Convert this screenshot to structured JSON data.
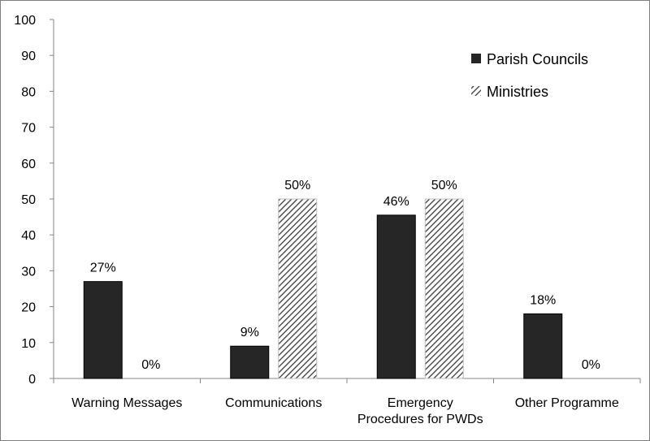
{
  "chart_data": {
    "type": "bar",
    "title": "",
    "xlabel": "",
    "ylabel": "",
    "categories": [
      [
        "Warning Messages"
      ],
      [
        "Communications"
      ],
      [
        "Emergency",
        "Procedures for PWDs"
      ],
      [
        "Other Programme"
      ]
    ],
    "series": [
      {
        "name": "Parish Councils",
        "values": [
          27,
          9,
          45.5,
          18
        ],
        "labels": [
          "27%",
          "9%",
          "46%",
          "18%"
        ],
        "color": "#262626",
        "pattern": "solid"
      },
      {
        "name": "Ministries",
        "values": [
          0,
          50,
          50,
          0
        ],
        "labels": [
          "0%",
          "50%",
          "50%",
          "0%"
        ],
        "color": "#404040",
        "pattern": "diagonal-hatch"
      }
    ],
    "ylim": [
      0,
      100
    ],
    "yticks": [
      "0",
      "10",
      "20",
      "30",
      "40",
      "50",
      "60",
      "70",
      "80",
      "90",
      "100"
    ],
    "grid": false,
    "legend": "top-right"
  }
}
